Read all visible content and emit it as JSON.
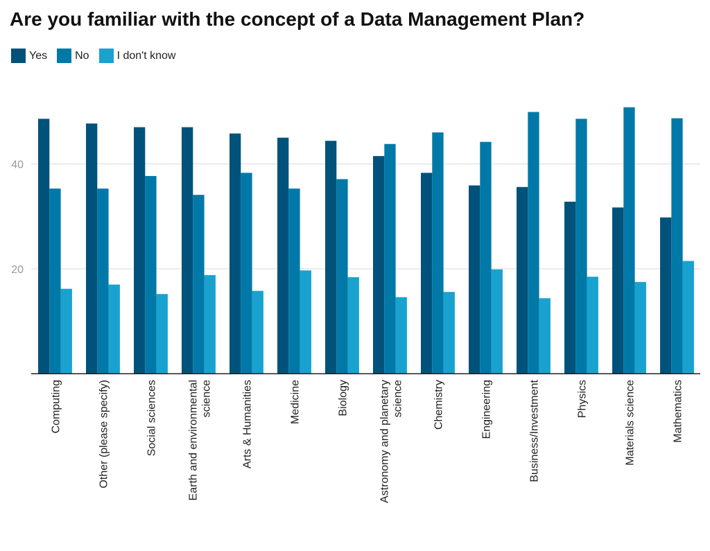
{
  "chart_data": {
    "type": "bar",
    "title": "Are you familiar with the concept of a Data Management Plan?",
    "categories": [
      "Computing",
      "Other (please specify)",
      "Social sciences",
      "Earth and environmental science",
      "Arts & Humanities",
      "Medicine",
      "Biology",
      "Astronomy and planetary science",
      "Chemistry",
      "Engineering",
      "Business/Investment",
      "Physics",
      "Materials science",
      "Mathematics"
    ],
    "series": [
      {
        "name": "Yes",
        "color": "#00527a",
        "values": [
          48.6,
          47.7,
          47.0,
          47.0,
          45.8,
          45.0,
          44.4,
          41.5,
          38.3,
          35.9,
          35.6,
          32.8,
          31.7,
          29.8
        ]
      },
      {
        "name": "No",
        "color": "#0079a8",
        "values": [
          35.3,
          35.3,
          37.7,
          34.1,
          38.3,
          35.3,
          37.1,
          43.8,
          46.0,
          44.2,
          49.9,
          48.6,
          50.8,
          48.7
        ]
      },
      {
        "name": "I don't know",
        "color": "#19a2cf",
        "values": [
          16.2,
          17.0,
          15.2,
          18.8,
          15.8,
          19.7,
          18.4,
          14.6,
          15.6,
          19.9,
          14.4,
          18.5,
          17.5,
          21.5
        ]
      }
    ],
    "yticks": [
      20,
      40
    ],
    "ylim": [
      0,
      55
    ],
    "grid": true,
    "legend": "top-left",
    "xlabel": "",
    "ylabel": ""
  }
}
